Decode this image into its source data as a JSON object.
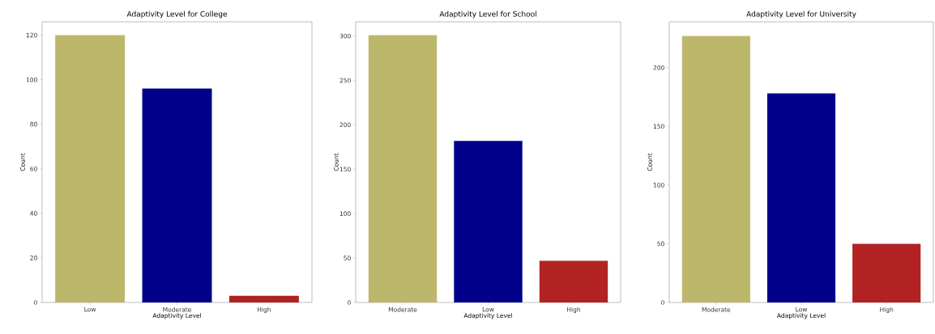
{
  "chart_data": [
    {
      "type": "bar",
      "title": "Adaptivity Level for College",
      "xlabel": "Adaptivity Level",
      "ylabel": "Count",
      "categories": [
        "Low",
        "Moderate",
        "High"
      ],
      "values": [
        120,
        96,
        3
      ],
      "colors": [
        "#bdb76b",
        "#00008b",
        "#b22222"
      ],
      "ylim": [
        0,
        126
      ],
      "yticks": [
        0,
        20,
        40,
        60,
        80,
        100,
        120
      ]
    },
    {
      "type": "bar",
      "title": "Adaptivity Level for School",
      "xlabel": "Adaptivity Level",
      "ylabel": "Count",
      "categories": [
        "Moderate",
        "Low",
        "High"
      ],
      "values": [
        301,
        182,
        47
      ],
      "colors": [
        "#bdb76b",
        "#00008b",
        "#b22222"
      ],
      "ylim": [
        0,
        316
      ],
      "yticks": [
        0,
        50,
        100,
        150,
        200,
        250,
        300
      ]
    },
    {
      "type": "bar",
      "title": "Adaptivity Level for University",
      "xlabel": "Adaptivity Level",
      "ylabel": "Count",
      "categories": [
        "Moderate",
        "Low",
        "High"
      ],
      "values": [
        227,
        178,
        50
      ],
      "colors": [
        "#bdb76b",
        "#00008b",
        "#b22222"
      ],
      "ylim": [
        0,
        239
      ],
      "yticks": [
        0,
        50,
        100,
        150,
        200
      ]
    }
  ]
}
